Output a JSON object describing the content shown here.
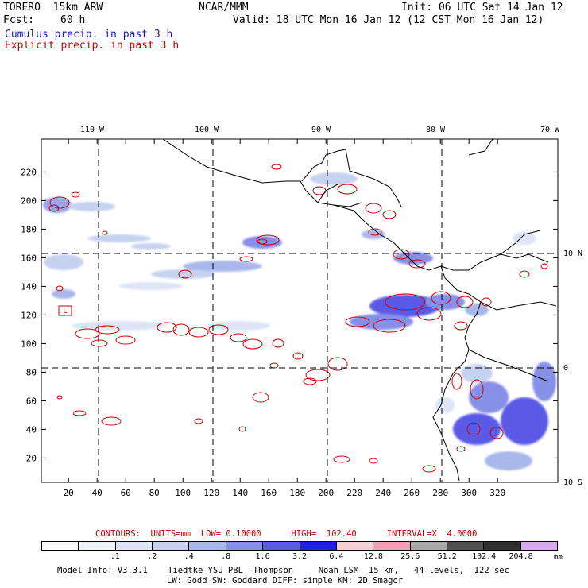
{
  "header": {
    "model": "TORERO  15km ARW",
    "agency": "NCAR/MMM",
    "init": "Init: 06 UTC Sat 14 Jan 12",
    "fcst_label": "Fcst:",
    "fcst_value": "60 h",
    "valid": "Valid: 18 UTC Mon 16 Jan 12 (12 CST Mon 16 Jan 12)",
    "field1": "Cumulus precip. in past 3 h",
    "field2": "Explicit precip. in past 3 h"
  },
  "colors": {
    "field1": "#1a1aa8",
    "field2": "#d00000",
    "coast": "#000000"
  },
  "map": {
    "top_lon_labels": [
      "110 W",
      "100 W",
      "90 W",
      "80 W",
      "70 W"
    ],
    "right_lat_labels": [
      "10 N",
      "0",
      "10 S"
    ],
    "y_ticks": [
      "220",
      "200",
      "180",
      "160",
      "140",
      "120",
      "100",
      "80",
      "60",
      "40",
      "20"
    ],
    "x_ticks": [
      "20",
      "40",
      "60",
      "80",
      "100",
      "120",
      "140",
      "160",
      "180",
      "200",
      "220",
      "240",
      "260",
      "280",
      "300",
      "320"
    ],
    "marker_label": "L"
  },
  "contour_info": "CONTOURS:  UNITS=mm  LOW= 0.10000      HIGH=  102.40      INTERVAL=X  4.0000",
  "legend": {
    "colors": [
      "#ffffff",
      "#eef2fb",
      "#dce4f6",
      "#c6d2f0",
      "#a9b8ea",
      "#8690e6",
      "#5a5ae6",
      "#2020e8",
      "#f4d0d4",
      "#f0a0b8",
      "#a8a8a8",
      "#505050",
      "#303030",
      "#d8a8f0"
    ],
    "labels": [
      ".1",
      ".2",
      ".4",
      ".8",
      "1.6",
      "3.2",
      "6.4",
      "12.8",
      "25.6",
      "51.2",
      "102.4",
      "204.8"
    ],
    "unit": "mm"
  },
  "footer": {
    "line1": "Model Info: V3.3.1    Tiedtke YSU PBL  Thompson     Noah LSM  15 km,   44 levels,  122 sec",
    "line2": "LW: Godd SW: Goddard DIFF: simple KM: 2D Smagor"
  }
}
